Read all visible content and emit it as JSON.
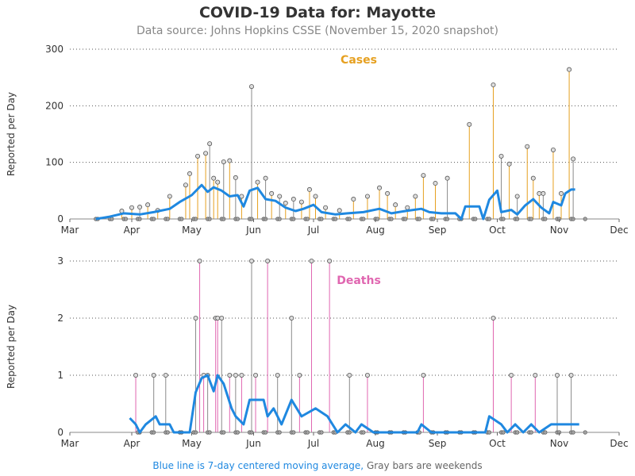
{
  "title": "COVID-19 Data for: Mayotte",
  "subtitle": "Data source: Johns Hopkins CSSE (November 15, 2020 snapshot)",
  "footer": {
    "ma_note": "Blue line is 7-day centered moving average,",
    "weekend_note": "Gray bars are weekends"
  },
  "colors": {
    "cases": "#e6a020",
    "deaths": "#e066b0",
    "moving_average": "#1f88e0",
    "weekend": "#8a8a8a",
    "grid": "#555555"
  },
  "chart_data": [
    {
      "type": "line",
      "panel_label": "Cases",
      "ylabel": "Reported per Day",
      "ylim": [
        0,
        300
      ],
      "yticks": [
        0,
        100,
        200,
        300
      ],
      "xlim": [
        "2020-03-01",
        "2020-12-01"
      ],
      "xticks": [
        {
          "date": "2020-03-01",
          "label": "Mar"
        },
        {
          "date": "2020-04-01",
          "label": "Apr"
        },
        {
          "date": "2020-05-01",
          "label": "May"
        },
        {
          "date": "2020-06-01",
          "label": "Jun"
        },
        {
          "date": "2020-07-01",
          "label": "Jul"
        },
        {
          "date": "2020-08-01",
          "label": "Aug"
        },
        {
          "date": "2020-09-01",
          "label": "Sep"
        },
        {
          "date": "2020-10-01",
          "label": "Oct"
        },
        {
          "date": "2020-11-01",
          "label": "Nov"
        },
        {
          "date": "2020-12-01",
          "label": "Dec"
        }
      ],
      "grid": "horizontal dotted",
      "data_start": "2020-03-14",
      "data_end": "2020-11-14",
      "spikes": [
        {
          "date": "2020-03-27",
          "value": 14
        },
        {
          "date": "2020-04-01",
          "value": 20
        },
        {
          "date": "2020-04-05",
          "value": 21
        },
        {
          "date": "2020-04-09",
          "value": 25
        },
        {
          "date": "2020-04-14",
          "value": 15
        },
        {
          "date": "2020-04-20",
          "value": 40
        },
        {
          "date": "2020-04-28",
          "value": 60
        },
        {
          "date": "2020-04-30",
          "value": 80
        },
        {
          "date": "2020-05-04",
          "value": 111
        },
        {
          "date": "2020-05-08",
          "value": 116
        },
        {
          "date": "2020-05-10",
          "value": 133
        },
        {
          "date": "2020-05-12",
          "value": 72
        },
        {
          "date": "2020-05-14",
          "value": 65
        },
        {
          "date": "2020-05-17",
          "value": 101
        },
        {
          "date": "2020-05-20",
          "value": 103
        },
        {
          "date": "2020-05-23",
          "value": 73
        },
        {
          "date": "2020-05-26",
          "value": 40
        },
        {
          "date": "2020-05-31",
          "value": 234
        },
        {
          "date": "2020-06-03",
          "value": 65
        },
        {
          "date": "2020-06-07",
          "value": 72
        },
        {
          "date": "2020-06-10",
          "value": 45
        },
        {
          "date": "2020-06-14",
          "value": 40
        },
        {
          "date": "2020-06-17",
          "value": 28
        },
        {
          "date": "2020-06-21",
          "value": 35
        },
        {
          "date": "2020-06-25",
          "value": 30
        },
        {
          "date": "2020-06-29",
          "value": 52
        },
        {
          "date": "2020-07-02",
          "value": 40
        },
        {
          "date": "2020-07-07",
          "value": 20
        },
        {
          "date": "2020-07-14",
          "value": 15
        },
        {
          "date": "2020-07-21",
          "value": 35
        },
        {
          "date": "2020-07-28",
          "value": 40
        },
        {
          "date": "2020-08-03",
          "value": 55
        },
        {
          "date": "2020-08-07",
          "value": 45
        },
        {
          "date": "2020-08-11",
          "value": 25
        },
        {
          "date": "2020-08-17",
          "value": 20
        },
        {
          "date": "2020-08-21",
          "value": 40
        },
        {
          "date": "2020-08-25",
          "value": 77
        },
        {
          "date": "2020-08-31",
          "value": 63
        },
        {
          "date": "2020-09-06",
          "value": 72
        },
        {
          "date": "2020-09-17",
          "value": 167
        },
        {
          "date": "2020-09-29",
          "value": 237
        },
        {
          "date": "2020-10-03",
          "value": 111
        },
        {
          "date": "2020-10-07",
          "value": 97
        },
        {
          "date": "2020-10-11",
          "value": 40
        },
        {
          "date": "2020-10-16",
          "value": 128
        },
        {
          "date": "2020-10-19",
          "value": 72
        },
        {
          "date": "2020-10-22",
          "value": 45
        },
        {
          "date": "2020-10-24",
          "value": 45
        },
        {
          "date": "2020-10-29",
          "value": 122
        },
        {
          "date": "2020-11-02",
          "value": 45
        },
        {
          "date": "2020-11-06",
          "value": 264
        },
        {
          "date": "2020-11-08",
          "value": 106
        }
      ],
      "moving_average": [
        {
          "date": "2020-03-14",
          "value": 0
        },
        {
          "date": "2020-03-21",
          "value": 4
        },
        {
          "date": "2020-03-28",
          "value": 10
        },
        {
          "date": "2020-04-05",
          "value": 8
        },
        {
          "date": "2020-04-12",
          "value": 12
        },
        {
          "date": "2020-04-20",
          "value": 18
        },
        {
          "date": "2020-04-25",
          "value": 30
        },
        {
          "date": "2020-05-01",
          "value": 42
        },
        {
          "date": "2020-05-06",
          "value": 60
        },
        {
          "date": "2020-05-09",
          "value": 48
        },
        {
          "date": "2020-05-12",
          "value": 56
        },
        {
          "date": "2020-05-16",
          "value": 50
        },
        {
          "date": "2020-05-20",
          "value": 40
        },
        {
          "date": "2020-05-24",
          "value": 42
        },
        {
          "date": "2020-05-27",
          "value": 22
        },
        {
          "date": "2020-05-30",
          "value": 50
        },
        {
          "date": "2020-06-03",
          "value": 55
        },
        {
          "date": "2020-06-07",
          "value": 35
        },
        {
          "date": "2020-06-12",
          "value": 32
        },
        {
          "date": "2020-06-17",
          "value": 20
        },
        {
          "date": "2020-06-22",
          "value": 14
        },
        {
          "date": "2020-06-26",
          "value": 18
        },
        {
          "date": "2020-07-01",
          "value": 25
        },
        {
          "date": "2020-07-05",
          "value": 12
        },
        {
          "date": "2020-07-12",
          "value": 8
        },
        {
          "date": "2020-07-18",
          "value": 10
        },
        {
          "date": "2020-07-26",
          "value": 12
        },
        {
          "date": "2020-08-03",
          "value": 18
        },
        {
          "date": "2020-08-09",
          "value": 10
        },
        {
          "date": "2020-08-16",
          "value": 14
        },
        {
          "date": "2020-08-24",
          "value": 18
        },
        {
          "date": "2020-08-28",
          "value": 12
        },
        {
          "date": "2020-09-03",
          "value": 10
        },
        {
          "date": "2020-09-10",
          "value": 10
        },
        {
          "date": "2020-09-13",
          "value": 0
        },
        {
          "date": "2020-09-15",
          "value": 22
        },
        {
          "date": "2020-09-22",
          "value": 22
        },
        {
          "date": "2020-09-24",
          "value": 0
        },
        {
          "date": "2020-09-27",
          "value": 34
        },
        {
          "date": "2020-10-01",
          "value": 50
        },
        {
          "date": "2020-10-03",
          "value": 12
        },
        {
          "date": "2020-10-08",
          "value": 16
        },
        {
          "date": "2020-10-11",
          "value": 8
        },
        {
          "date": "2020-10-15",
          "value": 24
        },
        {
          "date": "2020-10-19",
          "value": 35
        },
        {
          "date": "2020-10-23",
          "value": 20
        },
        {
          "date": "2020-10-27",
          "value": 10
        },
        {
          "date": "2020-10-29",
          "value": 30
        },
        {
          "date": "2020-11-02",
          "value": 24
        },
        {
          "date": "2020-11-04",
          "value": 45
        },
        {
          "date": "2020-11-07",
          "value": 52
        },
        {
          "date": "2020-11-09",
          "value": 52
        }
      ]
    },
    {
      "type": "line",
      "panel_label": "Deaths",
      "ylabel": "Reported per Day",
      "ylim": [
        0,
        3
      ],
      "yticks": [
        0,
        1,
        2,
        3
      ],
      "xlim": [
        "2020-03-01",
        "2020-12-01"
      ],
      "xticks": [
        {
          "date": "2020-03-01",
          "label": "Mar"
        },
        {
          "date": "2020-04-01",
          "label": "Apr"
        },
        {
          "date": "2020-05-01",
          "label": "May"
        },
        {
          "date": "2020-06-01",
          "label": "Jun"
        },
        {
          "date": "2020-07-01",
          "label": "Jul"
        },
        {
          "date": "2020-08-01",
          "label": "Aug"
        },
        {
          "date": "2020-09-01",
          "label": "Sep"
        },
        {
          "date": "2020-10-01",
          "label": "Oct"
        },
        {
          "date": "2020-11-01",
          "label": "Nov"
        },
        {
          "date": "2020-12-01",
          "label": "Dec"
        }
      ],
      "grid": "horizontal dotted",
      "data_start": "2020-03-31",
      "data_end": "2020-11-14",
      "spikes": [
        {
          "date": "2020-04-03",
          "value": 1
        },
        {
          "date": "2020-04-12",
          "value": 1
        },
        {
          "date": "2020-04-18",
          "value": 1
        },
        {
          "date": "2020-05-03",
          "value": 2
        },
        {
          "date": "2020-05-05",
          "value": 3
        },
        {
          "date": "2020-05-07",
          "value": 1
        },
        {
          "date": "2020-05-09",
          "value": 1
        },
        {
          "date": "2020-05-13",
          "value": 2
        },
        {
          "date": "2020-05-14",
          "value": 2
        },
        {
          "date": "2020-05-16",
          "value": 2
        },
        {
          "date": "2020-05-20",
          "value": 1
        },
        {
          "date": "2020-05-23",
          "value": 1
        },
        {
          "date": "2020-05-26",
          "value": 1
        },
        {
          "date": "2020-05-31",
          "value": 3
        },
        {
          "date": "2020-06-02",
          "value": 1
        },
        {
          "date": "2020-06-08",
          "value": 3
        },
        {
          "date": "2020-06-13",
          "value": 1
        },
        {
          "date": "2020-06-20",
          "value": 2
        },
        {
          "date": "2020-06-24",
          "value": 1
        },
        {
          "date": "2020-06-30",
          "value": 3
        },
        {
          "date": "2020-07-09",
          "value": 3
        },
        {
          "date": "2020-07-19",
          "value": 1
        },
        {
          "date": "2020-07-28",
          "value": 1
        },
        {
          "date": "2020-08-25",
          "value": 1
        },
        {
          "date": "2020-09-29",
          "value": 2
        },
        {
          "date": "2020-10-08",
          "value": 1
        },
        {
          "date": "2020-10-20",
          "value": 1
        },
        {
          "date": "2020-10-31",
          "value": 1
        },
        {
          "date": "2020-11-07",
          "value": 1
        }
      ],
      "moving_average": [
        {
          "date": "2020-03-31",
          "value": 0.25
        },
        {
          "date": "2020-04-03",
          "value": 0.14
        },
        {
          "date": "2020-04-05",
          "value": 0
        },
        {
          "date": "2020-04-08",
          "value": 0.14
        },
        {
          "date": "2020-04-13",
          "value": 0.28
        },
        {
          "date": "2020-04-15",
          "value": 0.14
        },
        {
          "date": "2020-04-20",
          "value": 0.14
        },
        {
          "date": "2020-04-22",
          "value": 0
        },
        {
          "date": "2020-04-30",
          "value": 0
        },
        {
          "date": "2020-05-03",
          "value": 0.7
        },
        {
          "date": "2020-05-06",
          "value": 0.95
        },
        {
          "date": "2020-05-09",
          "value": 1.0
        },
        {
          "date": "2020-05-12",
          "value": 0.72
        },
        {
          "date": "2020-05-14",
          "value": 1.0
        },
        {
          "date": "2020-05-17",
          "value": 0.85
        },
        {
          "date": "2020-05-21",
          "value": 0.42
        },
        {
          "date": "2020-05-23",
          "value": 0.28
        },
        {
          "date": "2020-05-27",
          "value": 0.14
        },
        {
          "date": "2020-05-30",
          "value": 0.57
        },
        {
          "date": "2020-06-06",
          "value": 0.57
        },
        {
          "date": "2020-06-08",
          "value": 0.28
        },
        {
          "date": "2020-06-11",
          "value": 0.42
        },
        {
          "date": "2020-06-15",
          "value": 0.14
        },
        {
          "date": "2020-06-20",
          "value": 0.57
        },
        {
          "date": "2020-06-25",
          "value": 0.28
        },
        {
          "date": "2020-07-02",
          "value": 0.42
        },
        {
          "date": "2020-07-08",
          "value": 0.28
        },
        {
          "date": "2020-07-13",
          "value": 0
        },
        {
          "date": "2020-07-17",
          "value": 0.14
        },
        {
          "date": "2020-07-22",
          "value": 0
        },
        {
          "date": "2020-07-25",
          "value": 0.14
        },
        {
          "date": "2020-07-31",
          "value": 0
        },
        {
          "date": "2020-08-22",
          "value": 0
        },
        {
          "date": "2020-08-24",
          "value": 0.14
        },
        {
          "date": "2020-08-29",
          "value": 0
        },
        {
          "date": "2020-09-25",
          "value": 0
        },
        {
          "date": "2020-09-27",
          "value": 0.28
        },
        {
          "date": "2020-10-03",
          "value": 0.14
        },
        {
          "date": "2020-10-06",
          "value": 0
        },
        {
          "date": "2020-10-10",
          "value": 0.14
        },
        {
          "date": "2020-10-14",
          "value": 0
        },
        {
          "date": "2020-10-18",
          "value": 0.14
        },
        {
          "date": "2020-10-22",
          "value": 0
        },
        {
          "date": "2020-10-28",
          "value": 0.14
        },
        {
          "date": "2020-11-11",
          "value": 0.14
        }
      ]
    }
  ]
}
